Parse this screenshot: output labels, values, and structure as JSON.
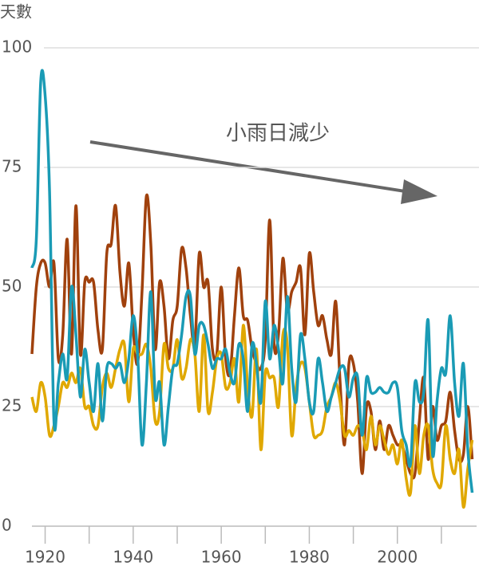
{
  "chart_data": {
    "type": "line",
    "y_label": "天數",
    "annotation": "小雨日減少",
    "x": [
      1917,
      1918,
      1919,
      1920,
      1921,
      1922,
      1923,
      1924,
      1925,
      1926,
      1927,
      1928,
      1929,
      1930,
      1931,
      1932,
      1933,
      1934,
      1935,
      1936,
      1937,
      1938,
      1939,
      1940,
      1941,
      1942,
      1943,
      1944,
      1945,
      1946,
      1947,
      1948,
      1949,
      1950,
      1951,
      1952,
      1953,
      1954,
      1955,
      1956,
      1957,
      1958,
      1959,
      1960,
      1961,
      1962,
      1963,
      1964,
      1965,
      1966,
      1967,
      1968,
      1969,
      1970,
      1971,
      1972,
      1973,
      1974,
      1975,
      1976,
      1977,
      1978,
      1979,
      1980,
      1981,
      1982,
      1983,
      1984,
      1985,
      1986,
      1987,
      1988,
      1989,
      1990,
      1991,
      1992,
      1993,
      1994,
      1995,
      1996,
      1997,
      1998,
      1999,
      2000,
      2001,
      2002,
      2003,
      2004,
      2005,
      2006,
      2007,
      2008,
      2009,
      2010,
      2011,
      2012,
      2013,
      2014,
      2015,
      2016,
      2017
    ],
    "series": [
      {
        "color": "#a0410d",
        "values": [
          36,
          50,
          55,
          55,
          50,
          55,
          35,
          40,
          60,
          36,
          67,
          36,
          51,
          51,
          51,
          41,
          37,
          57,
          59,
          67,
          53,
          46,
          55,
          41,
          34,
          49,
          69,
          59,
          37,
          51,
          46,
          35,
          43,
          46,
          58,
          54,
          44,
          38,
          57,
          50,
          51,
          37,
          36,
          50,
          35,
          32,
          44,
          54,
          44,
          43,
          37,
          34,
          33,
          39,
          64,
          38,
          40,
          56,
          45,
          49,
          51,
          54,
          40,
          57,
          49,
          42,
          44,
          39,
          36,
          47,
          30,
          17,
          34,
          34,
          26,
          11,
          25,
          24,
          16,
          22,
          16,
          21,
          19,
          17,
          17,
          14,
          11,
          11,
          22,
          31,
          14,
          25,
          18,
          21,
          22,
          28,
          20,
          14,
          15,
          25,
          14
        ]
      },
      {
        "color": "#e0a800",
        "values": [
          27,
          24,
          30,
          27,
          19,
          21,
          25,
          30,
          29,
          32,
          30,
          33,
          25,
          25,
          21,
          21,
          29,
          32,
          29,
          33,
          37,
          38,
          26,
          37,
          36,
          36,
          38,
          33,
          22,
          24,
          38,
          33,
          33,
          39,
          31,
          33,
          39,
          36,
          24,
          40,
          24,
          28,
          35,
          36,
          29,
          30,
          35,
          26,
          42,
          29,
          23,
          37,
          16,
          32,
          31,
          31,
          25,
          40,
          38,
          19,
          29,
          34,
          33,
          26,
          19,
          19,
          20,
          25,
          27,
          30,
          26,
          19,
          20,
          19,
          21,
          20,
          16,
          23,
          17,
          21,
          18,
          15,
          17,
          13,
          18,
          10,
          7,
          21,
          11,
          19,
          21,
          12,
          9,
          9,
          21,
          14,
          11,
          16,
          4,
          12,
          18
        ]
      },
      {
        "color": "#1a9bb5",
        "values": [
          54,
          60,
          93,
          90,
          70,
          22,
          30,
          36,
          31,
          50,
          40,
          27,
          37,
          30,
          24,
          34,
          22,
          33,
          34,
          33,
          34,
          30,
          35,
          44,
          36,
          17,
          30,
          49,
          27,
          30,
          17,
          25,
          33,
          34,
          40,
          48,
          48,
          36,
          42,
          42,
          38,
          33,
          35,
          35,
          37,
          32,
          30,
          38,
          35,
          24,
          38,
          34,
          26,
          47,
          35,
          42,
          37,
          30,
          48,
          33,
          26,
          40,
          35,
          26,
          24,
          35,
          30,
          24,
          27,
          30,
          33,
          33,
          27,
          31,
          31,
          19,
          31,
          28,
          28,
          29,
          28,
          28,
          30,
          29,
          20,
          17,
          13,
          30,
          26,
          28,
          43,
          15,
          26,
          33,
          32,
          44,
          30,
          23,
          34,
          16,
          7
        ]
      }
    ],
    "xlim": [
      1917,
      2018
    ],
    "xticks": [
      1920,
      1940,
      1960,
      1980,
      2000
    ],
    "xminor_ticks": [
      1930,
      1950,
      1970,
      1990,
      2010
    ],
    "ylim": [
      0,
      100
    ],
    "yticks": [
      0,
      25,
      50,
      75,
      100
    ],
    "grid": true
  }
}
